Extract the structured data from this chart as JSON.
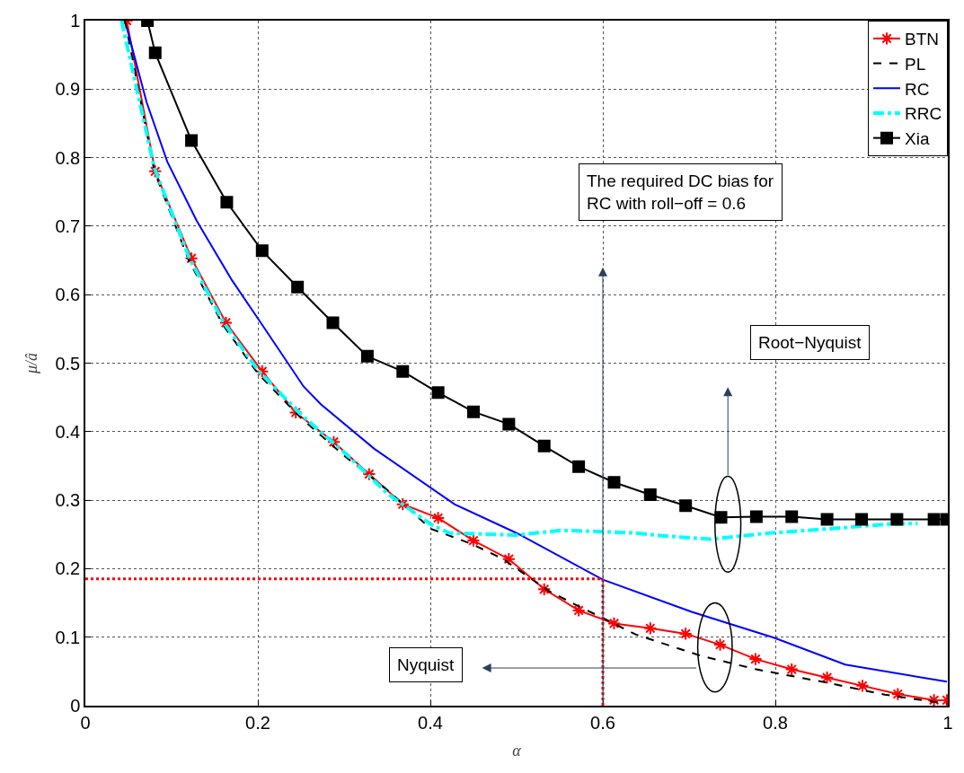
{
  "chart_data": {
    "type": "line",
    "xlabel": "α",
    "ylabel": "μ/â",
    "xlim": [
      0,
      1
    ],
    "ylim": [
      0,
      1
    ],
    "xticks": [
      0,
      0.2,
      0.4,
      0.6,
      0.8,
      1
    ],
    "yticks": [
      0,
      0.1,
      0.2,
      0.3,
      0.4,
      0.5,
      0.6,
      0.7,
      0.8,
      0.9,
      1
    ],
    "grid": true,
    "legend": "top right",
    "series": [
      {
        "name": "BTN",
        "color": "#ff0000",
        "marker": "cross",
        "line_style": "solid",
        "x": [
          0.048,
          0.081,
          0.123,
          0.163,
          0.205,
          0.244,
          0.288,
          0.329,
          0.368,
          0.409,
          0.45,
          0.491,
          0.532,
          0.572,
          0.613,
          0.655,
          0.696,
          0.736,
          0.777,
          0.819,
          0.86,
          0.901,
          0.942,
          0.984,
          0.999
        ],
        "values": [
          1.0,
          0.78,
          0.653,
          0.559,
          0.488,
          0.428,
          0.385,
          0.338,
          0.294,
          0.274,
          0.241,
          0.214,
          0.17,
          0.139,
          0.12,
          0.113,
          0.105,
          0.089,
          0.068,
          0.053,
          0.041,
          0.029,
          0.017,
          0.008,
          0.008
        ]
      },
      {
        "name": "PL",
        "color": "#000000",
        "marker": "none",
        "line_style": "dashed",
        "x": [
          0.046,
          0.08,
          0.12,
          0.16,
          0.2,
          0.25,
          0.3,
          0.35,
          0.401,
          0.448,
          0.483,
          0.538,
          0.572,
          0.6,
          0.638,
          0.713,
          0.778,
          0.858,
          0.927,
          0.999
        ],
        "values": [
          1.0,
          0.78,
          0.65,
          0.555,
          0.485,
          0.42,
          0.365,
          0.315,
          0.258,
          0.236,
          0.215,
          0.167,
          0.145,
          0.128,
          0.104,
          0.073,
          0.053,
          0.034,
          0.016,
          0.003
        ]
      },
      {
        "name": "RC",
        "color": "#0000ff",
        "marker": "none",
        "line_style": "solid",
        "x": [
          0.048,
          0.071,
          0.095,
          0.129,
          0.17,
          0.205,
          0.253,
          0.273,
          0.335,
          0.428,
          0.5,
          0.6,
          0.703,
          0.799,
          0.881,
          0.999
        ],
        "values": [
          0.99,
          0.881,
          0.794,
          0.708,
          0.621,
          0.556,
          0.466,
          0.44,
          0.375,
          0.294,
          0.252,
          0.184,
          0.137,
          0.099,
          0.06,
          0.035
        ]
      },
      {
        "name": "RRC",
        "color": "#00ffff",
        "marker": "none",
        "line_style": "dashdot",
        "x": [
          0.042,
          0.08,
          0.12,
          0.16,
          0.2,
          0.25,
          0.3,
          0.35,
          0.4,
          0.422,
          0.5,
          0.552,
          0.6,
          0.638,
          0.669,
          0.724,
          0.793,
          0.861,
          0.93,
          0.965
        ],
        "values": [
          1.0,
          0.785,
          0.655,
          0.56,
          0.49,
          0.425,
          0.37,
          0.31,
          0.265,
          0.252,
          0.249,
          0.256,
          0.254,
          0.252,
          0.248,
          0.243,
          0.252,
          0.258,
          0.265,
          0.266
        ]
      },
      {
        "name": "Xia",
        "color": "#000000",
        "marker": "square",
        "line_style": "solid",
        "x": [
          0.072,
          0.081,
          0.123,
          0.164,
          0.205,
          0.246,
          0.287,
          0.327,
          0.368,
          0.409,
          0.45,
          0.491,
          0.532,
          0.572,
          0.613,
          0.655,
          0.696,
          0.737,
          0.778,
          0.819,
          0.86,
          0.9,
          0.941,
          0.984,
          0.999
        ],
        "values": [
          1.0,
          0.953,
          0.825,
          0.735,
          0.664,
          0.611,
          0.559,
          0.51,
          0.488,
          0.457,
          0.429,
          0.411,
          0.379,
          0.349,
          0.326,
          0.308,
          0.292,
          0.275,
          0.276,
          0.276,
          0.272,
          0.272,
          0.272,
          0.272,
          0.272
        ]
      }
    ],
    "ref_lines": [
      {
        "axis": "y",
        "value": 0.185,
        "color": "#ff0000",
        "line_style": "dotted"
      },
      {
        "axis": "x",
        "value": 0.6,
        "color": "#ff0000",
        "line_style": "dotted"
      }
    ],
    "annotations": [
      "The required DC bias for\nRC with roll−off = 0.6",
      "Root−Nyquist",
      "Nyquist"
    ]
  }
}
